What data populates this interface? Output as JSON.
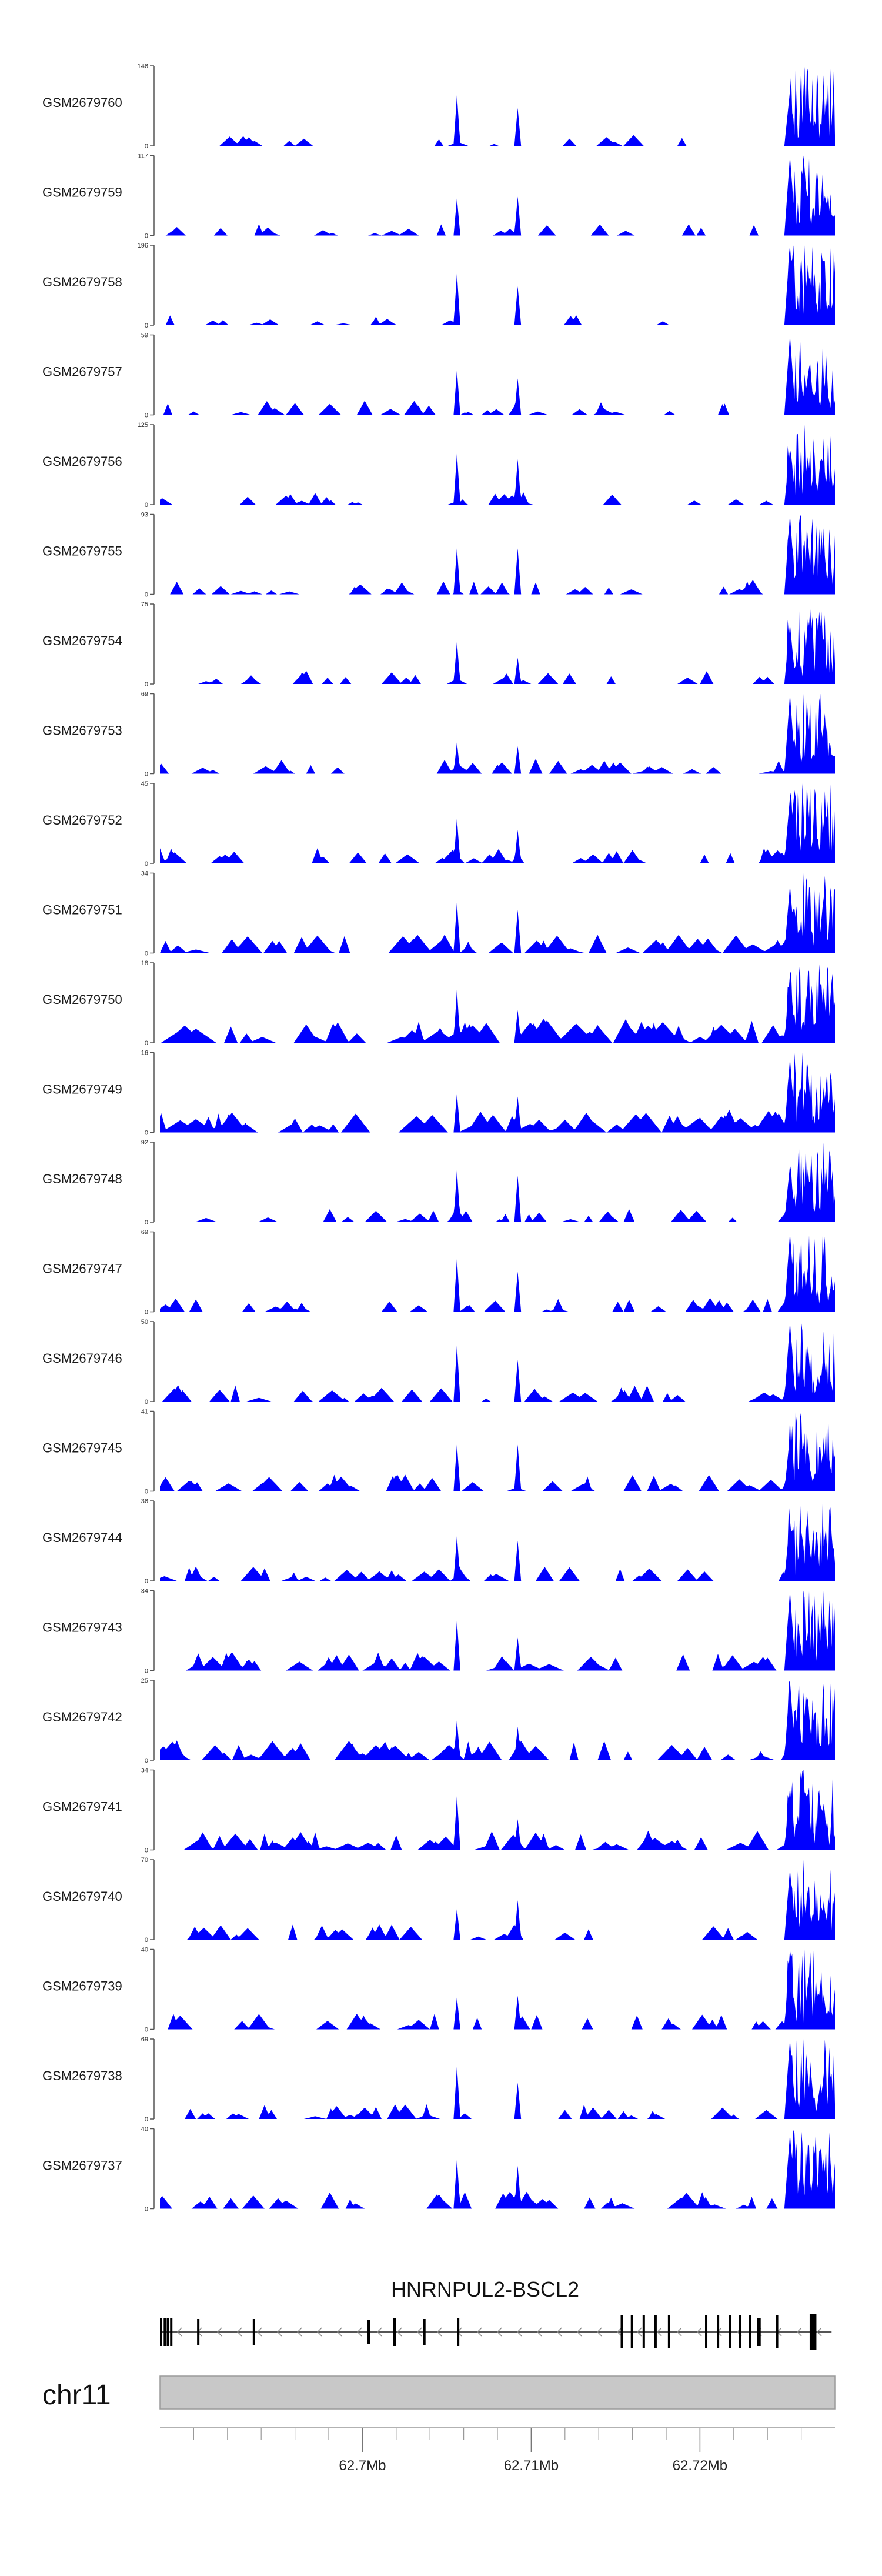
{
  "chart_data": {
    "type": "area",
    "title": "",
    "xlabel": "",
    "ylabel": "",
    "fill_color": "#0000ff",
    "x_range_bp": [
      62688000,
      62728000
    ],
    "x_ticks": [
      {
        "pos": 62700000,
        "label": "62.7Mb"
      },
      {
        "pos": 62710000,
        "label": "62.71Mb"
      },
      {
        "pos": 62720000,
        "label": "62.72Mb"
      }
    ],
    "gene": {
      "name": "HNRNPUL2-BSCL2",
      "strand": "-",
      "start": 62688000,
      "end": 62727800
    },
    "chromosome": "chr11",
    "tracks": [
      {
        "sample": "GSM2679760",
        "ymax": 146,
        "ymin": 0,
        "seed": 1,
        "density": 0.6
      },
      {
        "sample": "GSM2679759",
        "ymax": 117,
        "ymin": 0,
        "seed": 2,
        "density": 0.7
      },
      {
        "sample": "GSM2679758",
        "ymax": 196,
        "ymin": 0,
        "seed": 3,
        "density": 0.5
      },
      {
        "sample": "GSM2679757",
        "ymax": 59,
        "ymin": 0,
        "seed": 4,
        "density": 1.0
      },
      {
        "sample": "GSM2679756",
        "ymax": 125,
        "ymin": 0,
        "seed": 5,
        "density": 0.8
      },
      {
        "sample": "GSM2679755",
        "ymax": 93,
        "ymin": 0,
        "seed": 6,
        "density": 1.0
      },
      {
        "sample": "GSM2679754",
        "ymax": 75,
        "ymin": 0,
        "seed": 7,
        "density": 0.9
      },
      {
        "sample": "GSM2679753",
        "ymax": 69,
        "ymin": 0,
        "seed": 8,
        "density": 1.1
      },
      {
        "sample": "GSM2679752",
        "ymax": 45,
        "ymin": 0,
        "seed": 9,
        "density": 1.2
      },
      {
        "sample": "GSM2679751",
        "ymax": 34,
        "ymin": 0,
        "seed": 10,
        "density": 1.5
      },
      {
        "sample": "GSM2679750",
        "ymax": 18,
        "ymin": 0,
        "seed": 11,
        "density": 2.2
      },
      {
        "sample": "GSM2679749",
        "ymax": 16,
        "ymin": 0,
        "seed": 12,
        "density": 2.0
      },
      {
        "sample": "GSM2679748",
        "ymax": 92,
        "ymin": 0,
        "seed": 13,
        "density": 1.0
      },
      {
        "sample": "GSM2679747",
        "ymax": 69,
        "ymin": 0,
        "seed": 14,
        "density": 1.0
      },
      {
        "sample": "GSM2679746",
        "ymax": 50,
        "ymin": 0,
        "seed": 15,
        "density": 1.3
      },
      {
        "sample": "GSM2679745",
        "ymax": 41,
        "ymin": 0,
        "seed": 16,
        "density": 1.3
      },
      {
        "sample": "GSM2679744",
        "ymax": 36,
        "ymin": 0,
        "seed": 17,
        "density": 1.2
      },
      {
        "sample": "GSM2679743",
        "ymax": 34,
        "ymin": 0,
        "seed": 18,
        "density": 1.5
      },
      {
        "sample": "GSM2679742",
        "ymax": 25,
        "ymin": 0,
        "seed": 19,
        "density": 1.7
      },
      {
        "sample": "GSM2679741",
        "ymax": 34,
        "ymin": 0,
        "seed": 20,
        "density": 1.6
      },
      {
        "sample": "GSM2679740",
        "ymax": 70,
        "ymin": 0,
        "seed": 21,
        "density": 1.1
      },
      {
        "sample": "GSM2679739",
        "ymax": 40,
        "ymin": 0,
        "seed": 22,
        "density": 1.2
      },
      {
        "sample": "GSM2679738",
        "ymax": 69,
        "ymin": 0,
        "seed": 23,
        "density": 1.1
      },
      {
        "sample": "GSM2679737",
        "ymax": 40,
        "ymin": 0,
        "seed": 24,
        "density": 1.3
      }
    ]
  }
}
